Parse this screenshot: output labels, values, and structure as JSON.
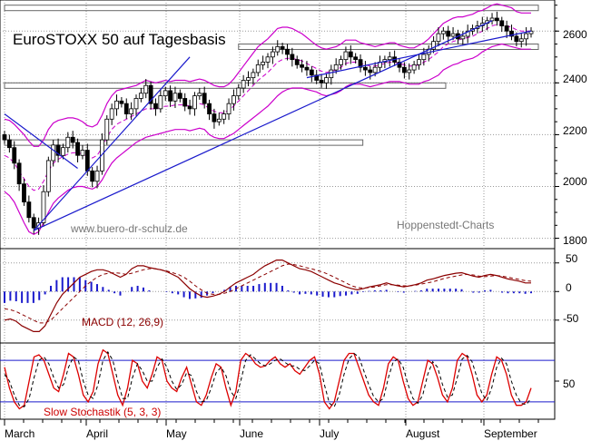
{
  "chart_data": [
    {
      "type": "candlestick",
      "title": "EuroSTOXX 50 auf Tagesbasis",
      "watermark_left": "www.buero-dr-schulz.de",
      "watermark_right": "Hoppenstedt-Charts",
      "ylim": [
        1760,
        2720
      ],
      "yticks": [
        1800,
        2000,
        2200,
        2400,
        2600
      ],
      "ytick_labels": [
        "1800",
        "2000",
        "2200",
        "2400",
        "2600"
      ],
      "x_labels": [
        "March",
        "April",
        "May",
        "June",
        "July",
        "August",
        "September"
      ],
      "close": [
        2180,
        2150,
        2090,
        2010,
        1940,
        1880,
        1840,
        1860,
        1980,
        2100,
        2160,
        2120,
        2150,
        2190,
        2170,
        2120,
        2140,
        2060,
        2020,
        2060,
        2180,
        2260,
        2300,
        2330,
        2320,
        2280,
        2300,
        2340,
        2360,
        2390,
        2320,
        2300,
        2350,
        2370,
        2330,
        2360,
        2340,
        2310,
        2300,
        2350,
        2360,
        2320,
        2280,
        2250,
        2260,
        2280,
        2320,
        2350,
        2380,
        2410,
        2420,
        2440,
        2470,
        2480,
        2500,
        2520,
        2540,
        2530,
        2510,
        2490,
        2470,
        2460,
        2450,
        2430,
        2410,
        2400,
        2420,
        2450,
        2470,
        2490,
        2520,
        2500,
        2490,
        2460,
        2450,
        2440,
        2460,
        2480,
        2490,
        2500,
        2480,
        2460,
        2440,
        2450,
        2470,
        2490,
        2510,
        2530,
        2560,
        2590,
        2600,
        2580,
        2590,
        2570,
        2580,
        2600,
        2610,
        2620,
        2630,
        2640,
        2650,
        2640,
        2620,
        2600,
        2580,
        2560,
        2570,
        2590,
        2600
      ],
      "ma_dashed": [
        2120,
        2110,
        2090,
        2060,
        2030,
        2000,
        1985,
        1990,
        2020,
        2060,
        2090,
        2105,
        2115,
        2125,
        2130,
        2130,
        2125,
        2115,
        2110,
        2120,
        2150,
        2190,
        2220,
        2240,
        2250,
        2260,
        2270,
        2280,
        2290,
        2300,
        2300,
        2300,
        2305,
        2310,
        2310,
        2315,
        2315,
        2315,
        2310,
        2315,
        2320,
        2315,
        2300,
        2290,
        2285,
        2285,
        2295,
        2310,
        2330,
        2350,
        2370,
        2390,
        2410,
        2425,
        2440,
        2460,
        2480,
        2490,
        2495,
        2495,
        2490,
        2485,
        2475,
        2465,
        2455,
        2445,
        2440,
        2445,
        2450,
        2460,
        2475,
        2480,
        2480,
        2475,
        2470,
        2465,
        2465,
        2470,
        2475,
        2480,
        2480,
        2475,
        2470,
        2465,
        2465,
        2470,
        2480,
        2490,
        2505,
        2520,
        2540,
        2550,
        2560,
        2565,
        2570,
        2575,
        2580,
        2590,
        2600,
        2610,
        2620,
        2625,
        2625,
        2620,
        2615,
        2605,
        2600,
        2600,
        2600
      ],
      "band_width": [
        140,
        145,
        150,
        160,
        170,
        175,
        170,
        165,
        160,
        160,
        155,
        150,
        145,
        140,
        135,
        130,
        125,
        120,
        120,
        120,
        125,
        130,
        130,
        130,
        125,
        120,
        115,
        110,
        110,
        110,
        105,
        100,
        100,
        100,
        95,
        95,
        95,
        95,
        95,
        95,
        95,
        95,
        100,
        100,
        100,
        100,
        100,
        105,
        110,
        115,
        120,
        125,
        130,
        130,
        130,
        130,
        130,
        125,
        120,
        115,
        110,
        105,
        100,
        95,
        90,
        90,
        90,
        90,
        90,
        90,
        90,
        85,
        85,
        80,
        80,
        80,
        75,
        75,
        75,
        75,
        75,
        70,
        70,
        70,
        70,
        75,
        75,
        80,
        85,
        90,
        90,
        90,
        90,
        90,
        85,
        85,
        85,
        85,
        80,
        80,
        80,
        80,
        75,
        75,
        75,
        70,
        70,
        70,
        70
      ],
      "trendlines": [
        {
          "from": [
            0,
            2280
          ],
          "to": [
            15,
            2070
          ]
        },
        {
          "from": [
            6,
            1830
          ],
          "to": [
            38,
            2500
          ]
        },
        {
          "from": [
            6,
            1830
          ],
          "to": [
            100,
            2640
          ]
        },
        {
          "from": [
            62,
            2420
          ],
          "to": [
            108,
            2600
          ]
        }
      ],
      "resistance_zones": [
        {
          "x_from": 0,
          "x_to": 108,
          "y_from": 2680,
          "y_to": 2700
        },
        {
          "x_from": 48,
          "x_to": 108,
          "y_from": 2530,
          "y_to": 2550
        },
        {
          "x_from": 0,
          "x_to": 89,
          "y_from": 2380,
          "y_to": 2400
        },
        {
          "x_from": 0,
          "x_to": 72,
          "y_from": 2160,
          "y_to": 2180
        }
      ]
    },
    {
      "type": "line",
      "title": "MACD (12, 26,9)",
      "ylim": [
        -90,
        75
      ],
      "yticks": [
        50,
        0,
        -50
      ],
      "ytick_labels": [
        "50",
        "0",
        "-50"
      ],
      "macd": [
        -50,
        -48,
        -52,
        -60,
        -65,
        -70,
        -70,
        -60,
        -40,
        -20,
        -5,
        5,
        15,
        25,
        30,
        35,
        38,
        38,
        35,
        30,
        25,
        30,
        40,
        45,
        45,
        42,
        40,
        38,
        35,
        30,
        25,
        15,
        5,
        -2,
        -8,
        -10,
        -8,
        -5,
        0,
        8,
        15,
        20,
        25,
        30,
        38,
        45,
        50,
        55,
        55,
        50,
        45,
        40,
        38,
        35,
        30,
        25,
        20,
        15,
        12,
        8,
        5,
        3,
        5,
        8,
        10,
        12,
        15,
        12,
        10,
        8,
        10,
        12,
        15,
        20,
        22,
        25,
        28,
        30,
        32,
        33,
        30,
        27,
        25,
        28,
        30,
        28,
        25,
        22,
        20,
        18,
        15,
        15
      ],
      "signal": [
        -30,
        -32,
        -35,
        -40,
        -45,
        -50,
        -55,
        -55,
        -50,
        -40,
        -30,
        -20,
        -10,
        0,
        10,
        18,
        25,
        30,
        32,
        33,
        32,
        30,
        32,
        35,
        38,
        40,
        40,
        38,
        36,
        33,
        30,
        25,
        18,
        10,
        3,
        -3,
        -5,
        -5,
        -3,
        0,
        5,
        10,
        15,
        20,
        25,
        30,
        35,
        40,
        45,
        48,
        47,
        45,
        42,
        40,
        37,
        34,
        30,
        25,
        20,
        15,
        10,
        7,
        6,
        7,
        8,
        10,
        12,
        12,
        11,
        10,
        10,
        11,
        13,
        15,
        17,
        20,
        23,
        25,
        27,
        29,
        30,
        29,
        27,
        26,
        27,
        28,
        27,
        25,
        23,
        21,
        19,
        18
      ]
    },
    {
      "type": "line",
      "title": "Slow Stochastik (5, 3, 3)",
      "ylim": [
        -5,
        105
      ],
      "yticks": [
        50
      ],
      "ytick_labels": [
        "50"
      ],
      "reference_lines": [
        80,
        20
      ],
      "k": [
        70,
        40,
        20,
        10,
        15,
        50,
        85,
        88,
        80,
        60,
        40,
        35,
        60,
        90,
        85,
        60,
        30,
        20,
        35,
        75,
        95,
        90,
        60,
        30,
        15,
        40,
        80,
        75,
        50,
        40,
        60,
        85,
        80,
        50,
        40,
        35,
        55,
        70,
        45,
        20,
        15,
        30,
        55,
        75,
        70,
        40,
        15,
        35,
        80,
        90,
        85,
        75,
        70,
        72,
        80,
        85,
        75,
        70,
        75,
        65,
        60,
        70,
        80,
        85,
        60,
        20,
        10,
        20,
        50,
        80,
        90,
        90,
        70,
        50,
        30,
        20,
        15,
        40,
        75,
        85,
        80,
        50,
        25,
        15,
        20,
        50,
        80,
        75,
        55,
        30,
        20,
        40,
        80,
        90,
        85,
        60,
        30,
        20,
        30,
        60,
        85,
        80,
        60,
        30,
        15,
        15,
        20,
        40
      ],
      "d": [
        60,
        50,
        30,
        15,
        13,
        25,
        55,
        80,
        85,
        75,
        55,
        40,
        45,
        70,
        85,
        80,
        50,
        30,
        25,
        45,
        80,
        92,
        80,
        50,
        25,
        25,
        55,
        75,
        65,
        50,
        50,
        70,
        82,
        70,
        50,
        38,
        45,
        62,
        58,
        35,
        20,
        22,
        40,
        62,
        70,
        58,
        35,
        25,
        50,
        80,
        88,
        82,
        75,
        72,
        75,
        80,
        82,
        77,
        72,
        72,
        67,
        65,
        72,
        80,
        75,
        45,
        18,
        13,
        30,
        60,
        82,
        90,
        85,
        65,
        45,
        28,
        20,
        25,
        55,
        78,
        82,
        70,
        45,
        25,
        18,
        30,
        60,
        78,
        70,
        45,
        27,
        30,
        55,
        82,
        87,
        78,
        55,
        32,
        22,
        40,
        70,
        83,
        75,
        50,
        30,
        18,
        16,
        25
      ]
    }
  ]
}
